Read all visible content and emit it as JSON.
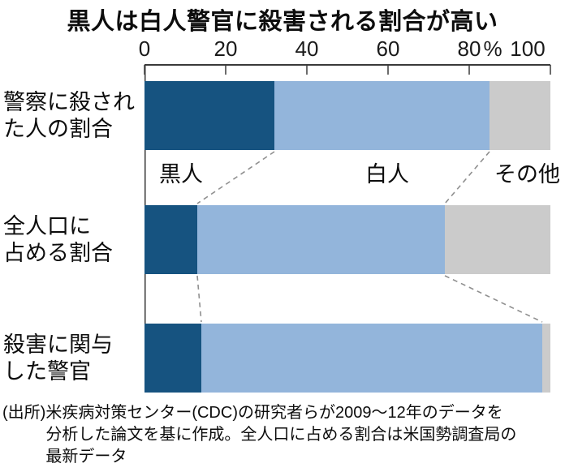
{
  "title": "黒人は白人警官に殺害される割合が高い",
  "chart_data": {
    "type": "bar",
    "orientation": "horizontal",
    "stacked": true,
    "title": "黒人は白人警官に殺害される割合が高い",
    "unit": "%",
    "xlim": [
      0,
      100
    ],
    "x_ticks": [
      0,
      20,
      40,
      60,
      80,
      100
    ],
    "grid": false,
    "legend_position": "inline between first and second bar",
    "categories": [
      "警察に殺された人の割合",
      "全人口に占める割合",
      "殺害に関与した警官"
    ],
    "series": [
      {
        "name": "黒人",
        "color": "#165380",
        "values": [
          32,
          13,
          14
        ]
      },
      {
        "name": "白人",
        "color": "#93b5db",
        "values": [
          53,
          61,
          84
        ]
      },
      {
        "name": "その他",
        "color": "#cbcbcb",
        "values": [
          15,
          26,
          2
        ]
      }
    ]
  },
  "axis": {
    "tick_labels": [
      "0",
      "20",
      "40",
      "60",
      "80",
      "100"
    ],
    "unit_label": "%"
  },
  "rows": [
    {
      "label_line1": "警察に殺され",
      "label_line2": "た人の割合"
    },
    {
      "label_line1": "全人口に",
      "label_line2": "占める割合"
    },
    {
      "label_line1": "殺害に関与",
      "label_line2": "した警官"
    }
  ],
  "segment_labels": [
    {
      "text": "黒人"
    },
    {
      "text": "白人"
    },
    {
      "text": "その他"
    }
  ],
  "source": {
    "prefix": "(出所)",
    "line1": "米疾病対策センター(CDC)の研究者らが2009〜12年のデータを",
    "line2": "分析した論文を基に作成。全人口に占める割合は米国勢調査局の",
    "line3": "最新データ"
  },
  "colors": {
    "black_series": "#165380",
    "white_series": "#93b5db",
    "other_series": "#cbcbcb",
    "axis": "#3a3a3a",
    "dashed_connector": "#8f8f8f",
    "text": "#0d0d0d"
  }
}
